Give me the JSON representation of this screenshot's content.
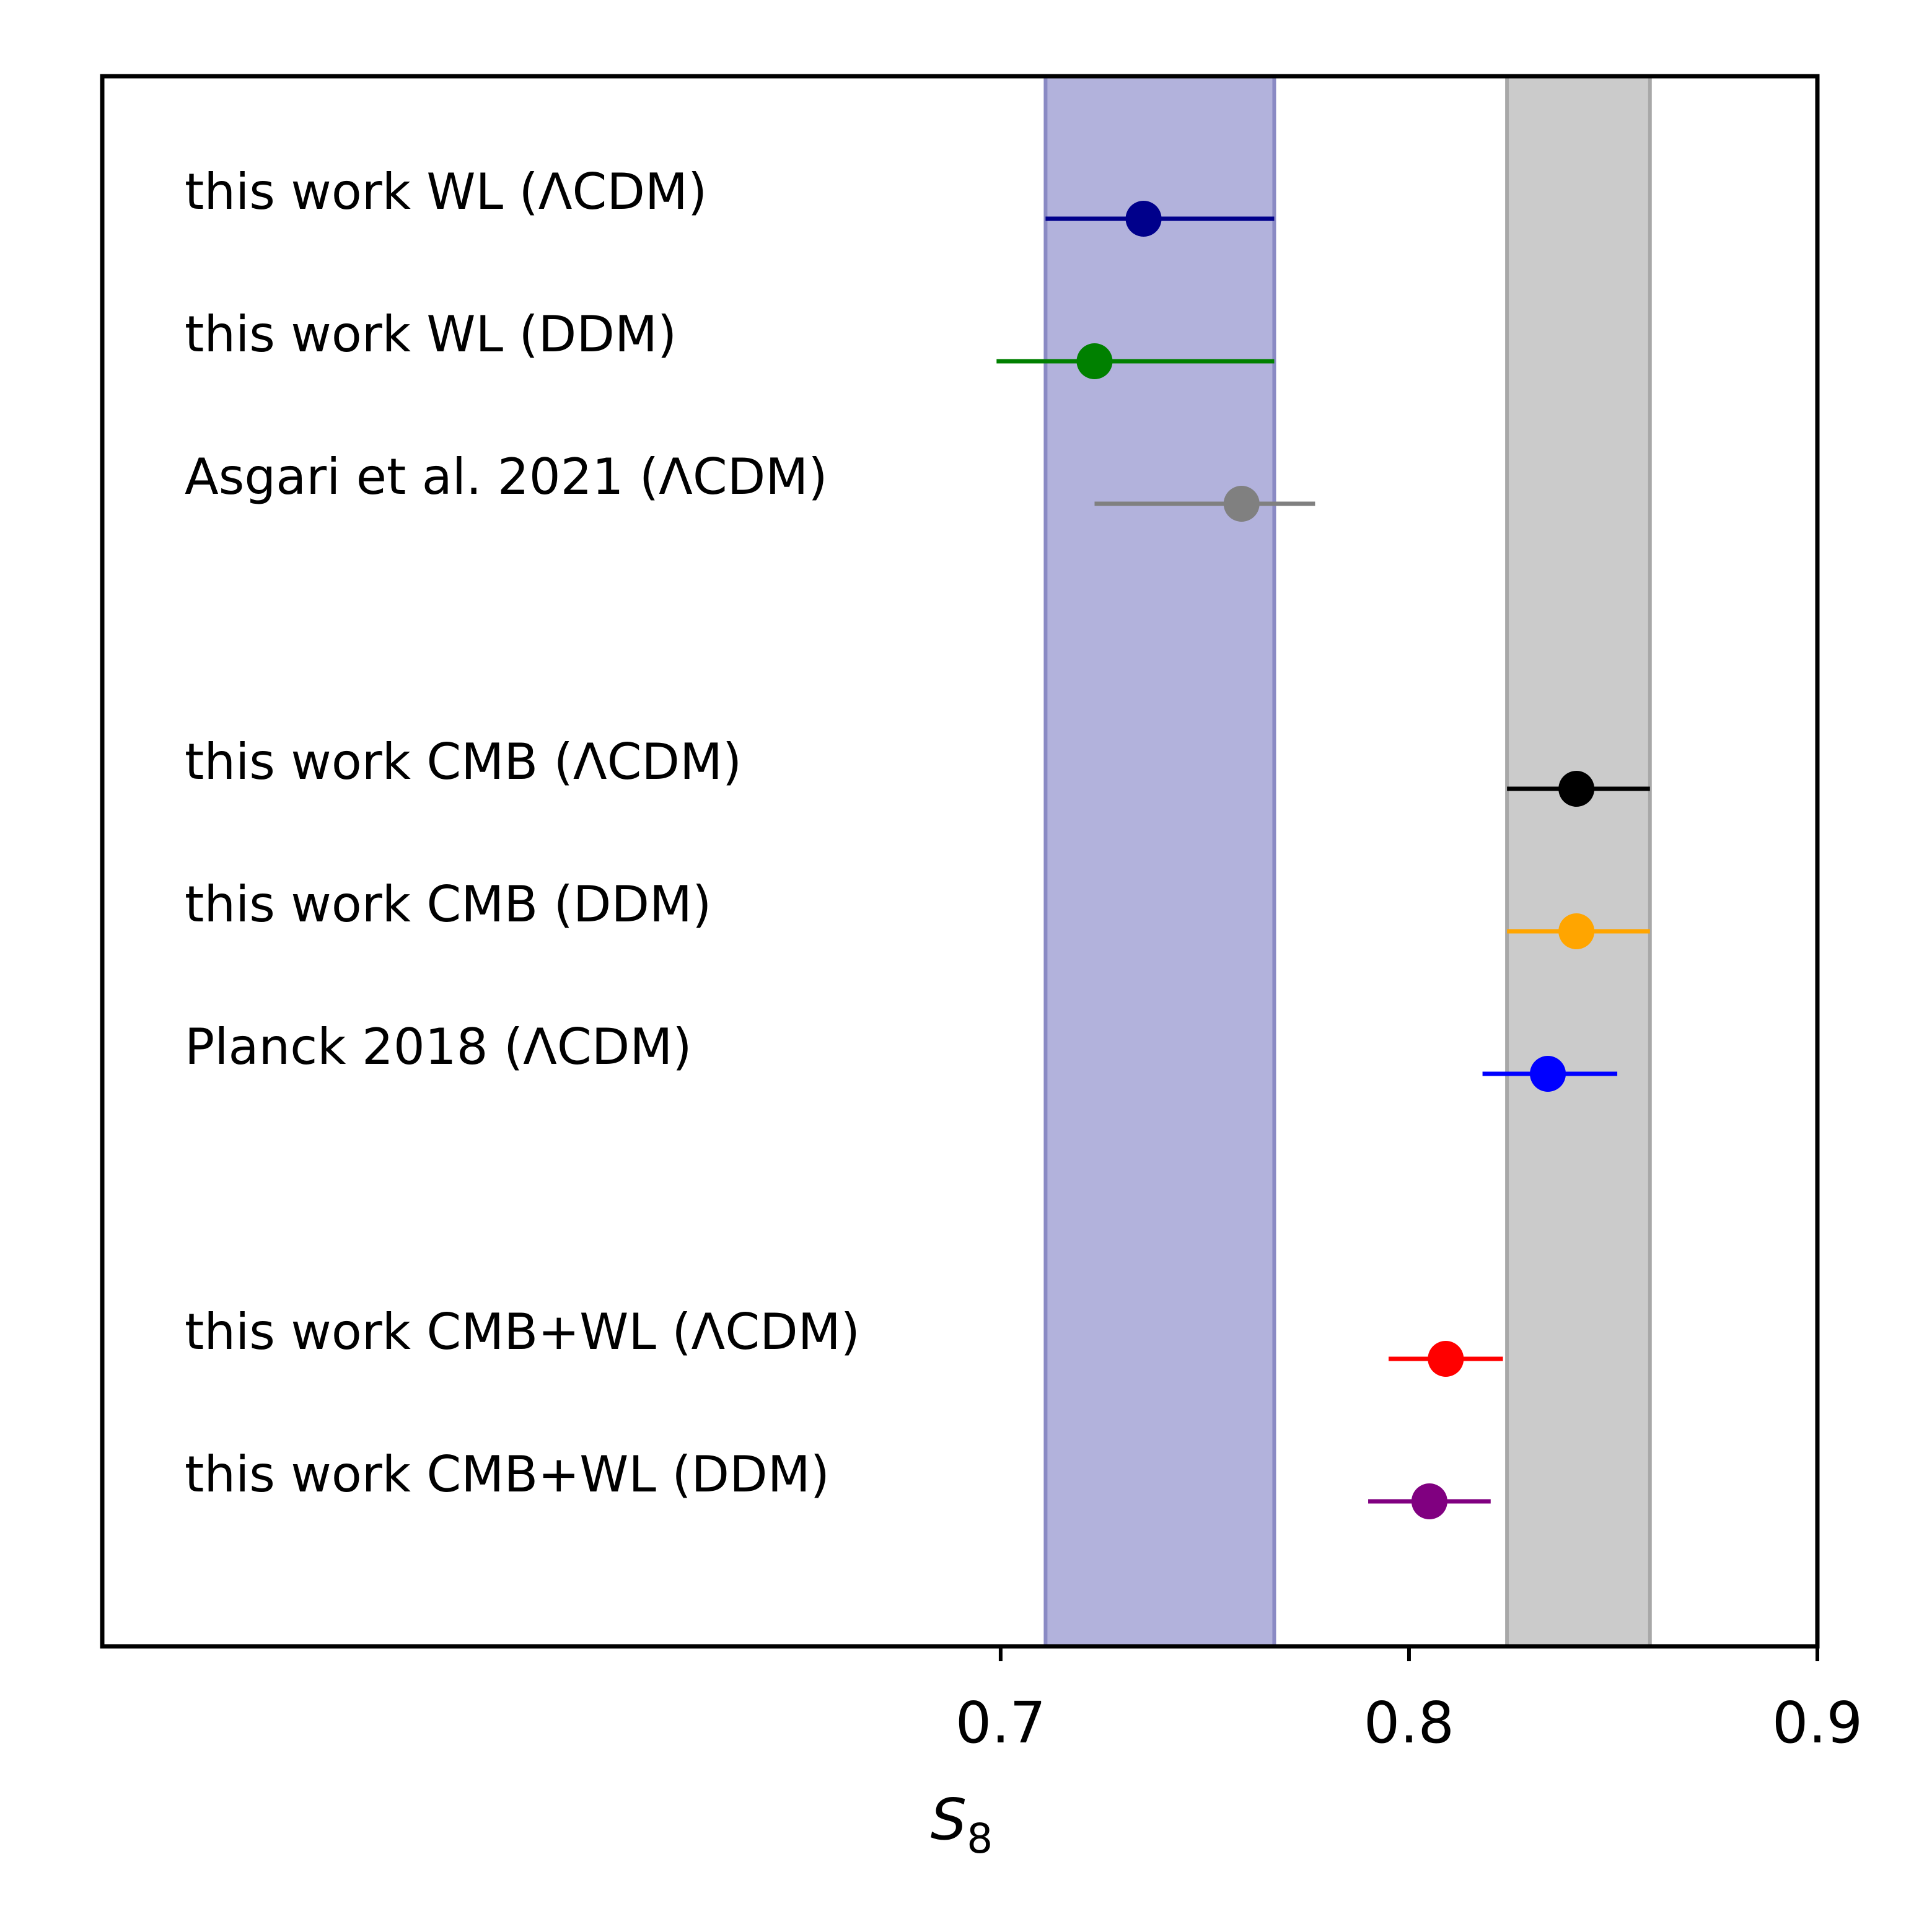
{
  "chart_data": {
    "type": "forest",
    "title": "",
    "xlabel_main": "S",
    "xlabel_sub": "8",
    "xlim": [
      0.48,
      0.9
    ],
    "xticks": [
      {
        "value": 0.7,
        "label": "0.7"
      },
      {
        "value": 0.8,
        "label": "0.8"
      },
      {
        "value": 0.9,
        "label": "0.9"
      }
    ],
    "bands": [
      {
        "low": 0.711,
        "high": 0.767,
        "color": "#b2b2dc",
        "edge_color": "#8a8ac4"
      },
      {
        "low": 0.824,
        "high": 0.859,
        "color": "#cbcbcb",
        "edge_color": "#a8a8a8"
      }
    ],
    "groups": [
      {
        "rows": [
          {
            "label": "this work WL (ΛCDM)",
            "value": 0.735,
            "low": 0.711,
            "high": 0.767,
            "color": "#00008b"
          },
          {
            "label": "this work WL (DDM)",
            "value": 0.723,
            "low": 0.699,
            "high": 0.767,
            "color": "#008000"
          },
          {
            "label": "Asgari et al. 2021 (ΛCDM)",
            "value": 0.759,
            "low": 0.723,
            "high": 0.777,
            "color": "#808080"
          }
        ]
      },
      {
        "rows": [
          {
            "label": "this work CMB (ΛCDM)",
            "value": 0.841,
            "low": 0.824,
            "high": 0.859,
            "color": "#000000"
          },
          {
            "label": "this work CMB (DDM)",
            "value": 0.841,
            "low": 0.824,
            "high": 0.859,
            "color": "#ffa500"
          },
          {
            "label": "Planck 2018 (ΛCDM)",
            "value": 0.834,
            "low": 0.818,
            "high": 0.851,
            "color": "#0000ff"
          }
        ]
      },
      {
        "rows": [
          {
            "label": "this work CMB+WL (ΛCDM)",
            "value": 0.809,
            "low": 0.795,
            "high": 0.823,
            "color": "#ff0000"
          },
          {
            "label": "this work CMB+WL (DDM)",
            "value": 0.805,
            "low": 0.79,
            "high": 0.82,
            "color": "#800080"
          }
        ]
      }
    ]
  }
}
